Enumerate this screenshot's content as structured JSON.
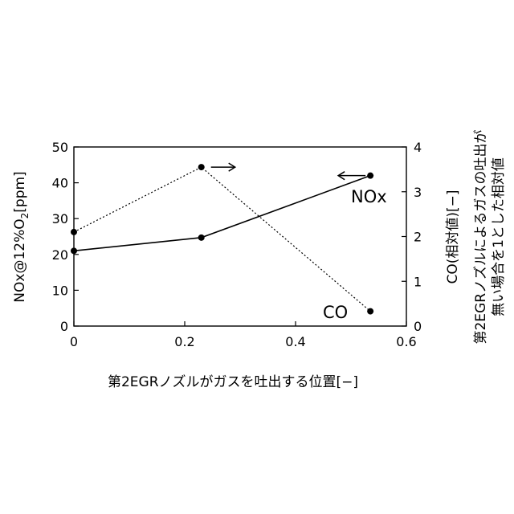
{
  "chart_data": {
    "type": "line",
    "xlabel": "第2EGRノズルがガスを吐出する位置[−]",
    "ylabel_left": {
      "pre": "NOx@12%O",
      "sub": "2",
      "post": "[ppm]"
    },
    "ylabel_right_line1": "CO(相対値)[−]",
    "ylabel_right_line2": "第2EGRノズルによるガスの吐出が",
    "ylabel_right_line3": "無い場合を1とした相対値",
    "xlim": [
      0,
      0.6
    ],
    "ylim_left": [
      0,
      50
    ],
    "ylim_right": [
      0,
      4
    ],
    "x_ticks": [
      {
        "value": 0,
        "label": "0"
      },
      {
        "value": 0.2,
        "label": "0.2"
      },
      {
        "value": 0.4,
        "label": "0.4"
      },
      {
        "value": 0.6,
        "label": "0.6"
      }
    ],
    "y_left_ticks": [
      {
        "value": 0,
        "label": "0"
      },
      {
        "value": 10,
        "label": "10"
      },
      {
        "value": 20,
        "label": "20"
      },
      {
        "value": 30,
        "label": "30"
      },
      {
        "value": 40,
        "label": "40"
      },
      {
        "value": 50,
        "label": "50"
      }
    ],
    "y_right_ticks": [
      {
        "value": 0,
        "label": "0"
      },
      {
        "value": 1,
        "label": "1"
      },
      {
        "value": 2,
        "label": "2"
      },
      {
        "value": 3,
        "label": "3"
      },
      {
        "value": 4,
        "label": "4"
      }
    ],
    "series": [
      {
        "name": "NOx",
        "axis": "left",
        "style": "solid",
        "x": [
          0,
          0.23,
          0.535
        ],
        "y": [
          21,
          24.7,
          42
        ]
      },
      {
        "name": "CO",
        "axis": "right",
        "style": "dotted",
        "x": [
          0,
          0.23,
          0.535
        ],
        "y": [
          2.1,
          3.55,
          0.33
        ]
      }
    ],
    "annotations": [
      {
        "text": "NOx",
        "series": "NOx",
        "arrow": "left"
      },
      {
        "text": "CO",
        "series": "CO"
      }
    ],
    "right_arrow_series": "CO",
    "left_arrow_series": "NOx",
    "colors": {
      "line": "#000000",
      "marker": "#000000"
    }
  }
}
